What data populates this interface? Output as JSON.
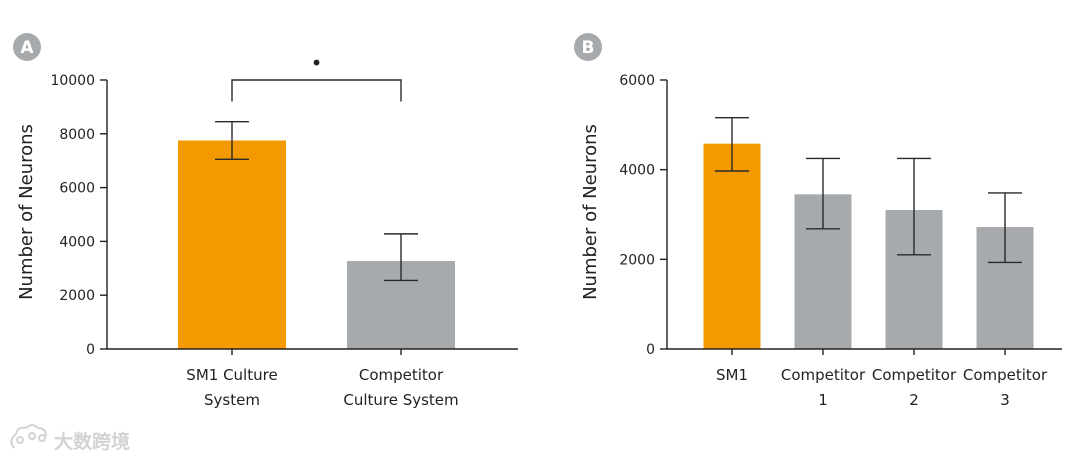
{
  "colors": {
    "accent": "#F29A00",
    "neutral": "#A7AAAD",
    "badge": "#A7AAAD",
    "text": "#222222"
  },
  "watermark": {
    "text": "大数跨境",
    "icon": "cloud-logo-icon"
  },
  "chart_data": [
    {
      "panel": "A",
      "type": "bar",
      "ylabel": "Number of Neurons",
      "ylim": [
        0,
        10000
      ],
      "yticks": [
        0,
        2000,
        4000,
        6000,
        8000,
        10000
      ],
      "categories": [
        [
          "SM1 Culture",
          "System"
        ],
        [
          "Competitor",
          "Culture System"
        ]
      ],
      "values": [
        7750,
        3270
      ],
      "errors": [
        [
          7050,
          8450
        ],
        [
          2550,
          4280
        ]
      ],
      "bar_colors": [
        "#F29A00",
        "#A7AAAD"
      ],
      "significance": {
        "between": [
          0,
          1
        ],
        "marker": "•",
        "bracket_y": 10000,
        "drop_y": 9200
      }
    },
    {
      "panel": "B",
      "type": "bar",
      "ylabel": "Number of Neurons",
      "ylim": [
        0,
        6000
      ],
      "yticks": [
        0,
        2000,
        4000,
        6000
      ],
      "categories": [
        [
          "SM1"
        ],
        [
          "Competitor",
          "1"
        ],
        [
          "Competitor",
          "2"
        ],
        [
          "Competitor",
          "3"
        ]
      ],
      "values": [
        4580,
        3450,
        3100,
        2720
      ],
      "errors": [
        [
          3970,
          5160
        ],
        [
          2680,
          4250
        ],
        [
          2100,
          4250
        ],
        [
          1930,
          3480
        ]
      ],
      "bar_colors": [
        "#F29A00",
        "#A7AAAD",
        "#A7AAAD",
        "#A7AAAD"
      ]
    }
  ]
}
